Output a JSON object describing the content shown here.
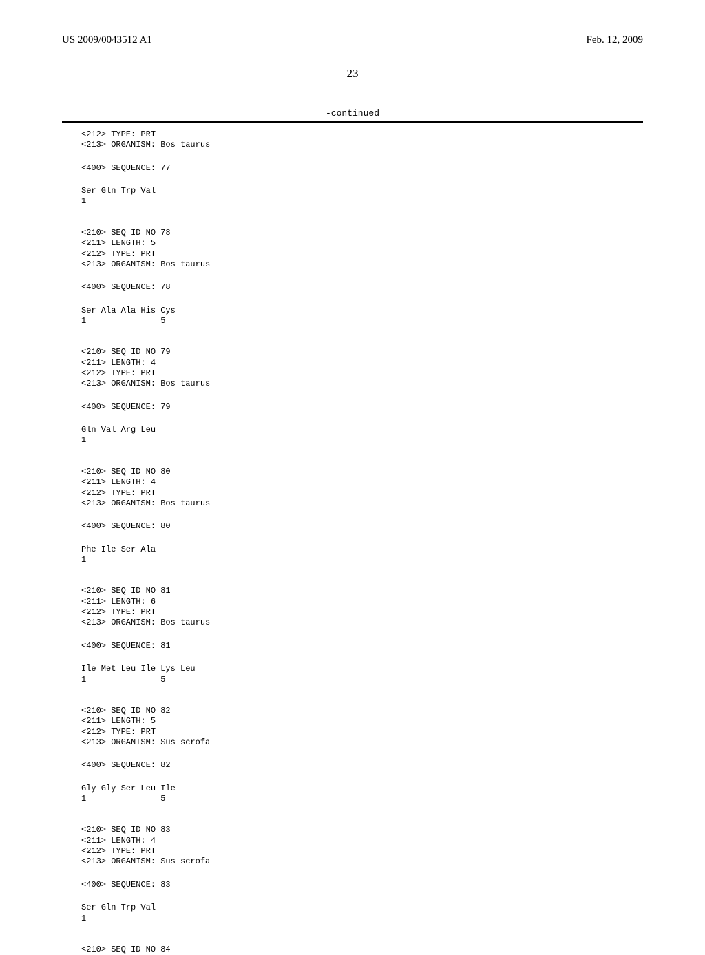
{
  "header": {
    "pub_number": "US 2009/0043512 A1",
    "pub_date": "Feb. 12, 2009"
  },
  "page_number": "23",
  "continued_label": "-continued",
  "entries": [
    {
      "tags": [
        "<212> TYPE: PRT",
        "<213> ORGANISM: Bos taurus"
      ],
      "seq_line": "<400> SEQUENCE: 77",
      "residues": "Ser Gln Trp Val",
      "positions": "1"
    },
    {
      "tags": [
        "<210> SEQ ID NO 78",
        "<211> LENGTH: 5",
        "<212> TYPE: PRT",
        "<213> ORGANISM: Bos taurus"
      ],
      "seq_line": "<400> SEQUENCE: 78",
      "residues": "Ser Ala Ala His Cys",
      "positions": "1               5"
    },
    {
      "tags": [
        "<210> SEQ ID NO 79",
        "<211> LENGTH: 4",
        "<212> TYPE: PRT",
        "<213> ORGANISM: Bos taurus"
      ],
      "seq_line": "<400> SEQUENCE: 79",
      "residues": "Gln Val Arg Leu",
      "positions": "1"
    },
    {
      "tags": [
        "<210> SEQ ID NO 80",
        "<211> LENGTH: 4",
        "<212> TYPE: PRT",
        "<213> ORGANISM: Bos taurus"
      ],
      "seq_line": "<400> SEQUENCE: 80",
      "residues": "Phe Ile Ser Ala",
      "positions": "1"
    },
    {
      "tags": [
        "<210> SEQ ID NO 81",
        "<211> LENGTH: 6",
        "<212> TYPE: PRT",
        "<213> ORGANISM: Bos taurus"
      ],
      "seq_line": "<400> SEQUENCE: 81",
      "residues": "Ile Met Leu Ile Lys Leu",
      "positions": "1               5"
    },
    {
      "tags": [
        "<210> SEQ ID NO 82",
        "<211> LENGTH: 5",
        "<212> TYPE: PRT",
        "<213> ORGANISM: Sus scrofa"
      ],
      "seq_line": "<400> SEQUENCE: 82",
      "residues": "Gly Gly Ser Leu Ile",
      "positions": "1               5"
    },
    {
      "tags": [
        "<210> SEQ ID NO 83",
        "<211> LENGTH: 4",
        "<212> TYPE: PRT",
        "<213> ORGANISM: Sus scrofa"
      ],
      "seq_line": "<400> SEQUENCE: 83",
      "residues": "Ser Gln Trp Val",
      "positions": "1"
    },
    {
      "tags": [
        "<210> SEQ ID NO 84"
      ],
      "seq_line": null,
      "residues": null,
      "positions": null
    }
  ]
}
